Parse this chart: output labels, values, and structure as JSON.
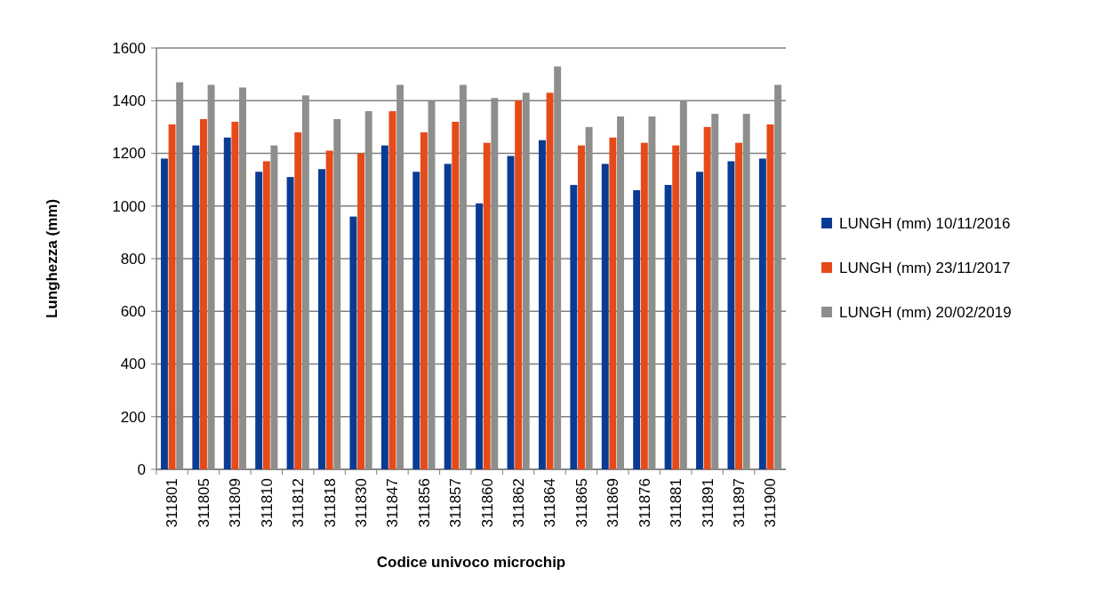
{
  "chart_data": {
    "type": "bar",
    "xlabel": "Codice univoco microchip",
    "ylabel": "Lunghezza (mm)",
    "categories": [
      "311801",
      "311805",
      "311809",
      "311810",
      "311812",
      "311818",
      "311830",
      "311847",
      "311856",
      "311857",
      "311860",
      "311862",
      "311864",
      "311865",
      "311869",
      "311876",
      "311881",
      "311891",
      "311897",
      "311900"
    ],
    "series": [
      {
        "name": "LUNGH (mm) 10/11/2016",
        "color": "#0a3b94",
        "values": [
          1180,
          1230,
          1260,
          1130,
          1110,
          1140,
          960,
          1230,
          1130,
          1160,
          1010,
          1190,
          1250,
          1080,
          1160,
          1060,
          1080,
          1130,
          1170,
          1180
        ]
      },
      {
        "name": "LUNGH (mm) 23/11/2017",
        "color": "#e64a19",
        "values": [
          1310,
          1330,
          1320,
          1170,
          1280,
          1210,
          1200,
          1360,
          1280,
          1320,
          1240,
          1400,
          1430,
          1230,
          1260,
          1240,
          1230,
          1300,
          1240,
          1310
        ]
      },
      {
        "name": "LUNGH (mm) 20/02/2019",
        "color": "#8e8e8c",
        "values": [
          1470,
          1460,
          1450,
          1230,
          1420,
          1330,
          1360,
          1460,
          1400,
          1460,
          1410,
          1430,
          1530,
          1300,
          1340,
          1340,
          1400,
          1350,
          1350,
          1460
        ]
      }
    ],
    "ylim": [
      0,
      1600
    ],
    "yticks": [
      0,
      200,
      400,
      600,
      800,
      1000,
      1200,
      1400,
      1600
    ],
    "grid": "y",
    "legend": "right"
  }
}
